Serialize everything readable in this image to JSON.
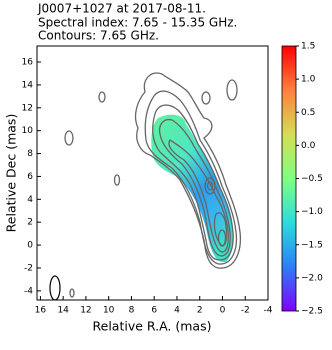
{
  "chart_data": {
    "type": "image",
    "title_lines": [
      "J0007+1027 at 2017-08-11.",
      "Spectral index: 7.65 - 15.35 GHz.",
      "Contours: 7.65 GHz."
    ],
    "x_label": "Relative R.A. (mas)",
    "y_label": "Relative Dec (mas)",
    "xlim": [
      16.3,
      -4
    ],
    "xticks": [
      16,
      14,
      12,
      10,
      8,
      6,
      4,
      2,
      0,
      -2,
      -4
    ],
    "ylim": [
      -4.8,
      17.4
    ],
    "yticks": [
      -4,
      -2,
      0,
      2,
      4,
      6,
      8,
      10,
      12,
      14,
      16
    ],
    "colorbar": {
      "clim": [
        -2.5,
        1.5
      ],
      "ticks": [
        {
          "value": -2.5,
          "label": "−2.5"
        },
        {
          "value": -2.0,
          "label": "−2.0"
        },
        {
          "value": -1.5,
          "label": "−1.5"
        },
        {
          "value": -1.0,
          "label": "−1.0"
        },
        {
          "value": -0.5,
          "label": "−0.5"
        },
        {
          "value": 0.0,
          "label": "0.0"
        },
        {
          "value": 0.5,
          "label": "0.5"
        },
        {
          "value": 1.0,
          "label": "1.0"
        },
        {
          "value": 1.5,
          "label": "1.5"
        }
      ],
      "colors": [
        "#8000ff",
        "#2c7ef7",
        "#2adddd",
        "#80ff80",
        "#d4dd55",
        "#ff8040",
        "#ff0000"
      ]
    },
    "contour_color": "#666666"
  }
}
